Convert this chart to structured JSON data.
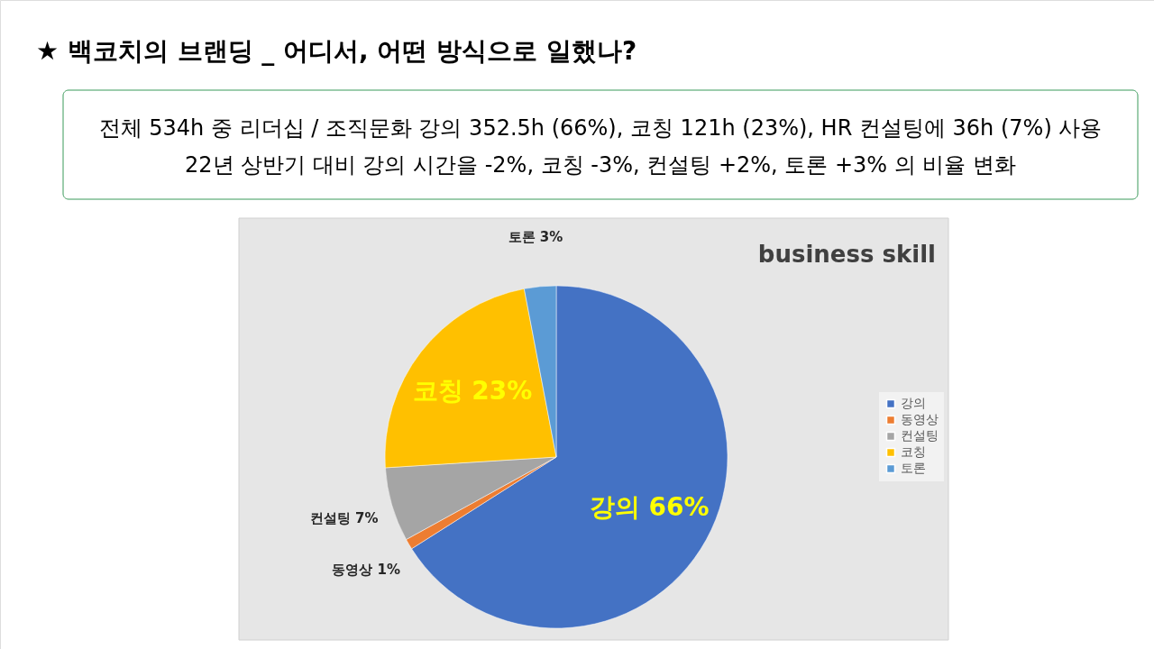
{
  "chart_data": {
    "type": "pie",
    "title": "★ 백코치의 브랜딩 _ 어디서, 어떤 방식으로 일했나?",
    "subtitle": "business skill",
    "annotations": [
      "전체 534h 중 리더십 / 조직문화 강의 352.5h (66%), 코칭 121h (23%), HR 컨설팅에 36h (7%) 사용",
      "22년 상반기 대비 강의 시간을 -2%, 코칭 -3%, 컨설팅 +2%, 토론 +3% 의 비율 변화"
    ],
    "categories": [
      "강의",
      "동영상",
      "컨설팅",
      "코칭",
      "토론"
    ],
    "values": [
      66,
      1,
      7,
      23,
      3
    ],
    "colors": [
      "#4472c4",
      "#ed7d31",
      "#a5a5a5",
      "#ffc000",
      "#5b9bd5"
    ],
    "value_labels": [
      "강의 66%",
      "동영상 1%",
      "컨설팅 7%",
      "코칭 23%",
      "토론 3%"
    ],
    "legend": "right"
  }
}
